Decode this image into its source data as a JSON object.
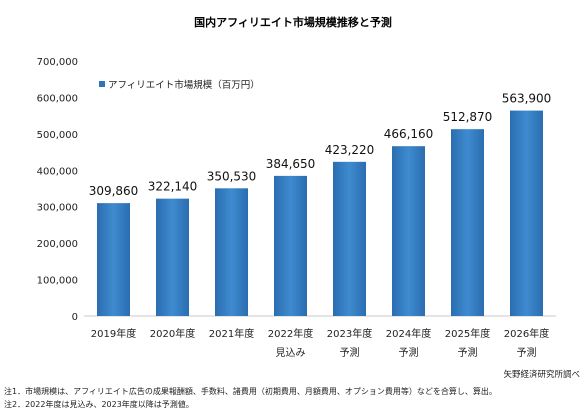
{
  "chart_data": {
    "type": "bar",
    "title": "国内アフィリエイト市場規模推移と予測",
    "categories": [
      "2019年度",
      "2020年度",
      "2021年度",
      "2022年度",
      "2023年度",
      "2024年度",
      "2025年度",
      "2026年度"
    ],
    "category_sublabels": [
      "",
      "",
      "",
      "見込み",
      "予測",
      "予測",
      "予測",
      "予測"
    ],
    "series": [
      {
        "name": "アフィリエイト市場規模（百万円）",
        "values": [
          309860,
          322140,
          350530,
          384650,
          423220,
          466160,
          512870,
          563900
        ]
      }
    ],
    "value_labels": [
      "309,860",
      "322,140",
      "350,530",
      "384,650",
      "423,220",
      "466,160",
      "512,870",
      "563,900"
    ],
    "ylim": [
      0,
      700000
    ],
    "yticks": [
      "0",
      "100,000",
      "200,000",
      "300,000",
      "400,000",
      "500,000",
      "600,000",
      "700,000"
    ],
    "xlabel": "",
    "ylabel": "",
    "legend_position": "top-left",
    "grid": false,
    "bar_color": "#2e75b6"
  },
  "source": "矢野経済研究所調べ",
  "notes": [
    "注1．市場規模は、アフィリエイト広告の成果報酬額、手数料、諸費用（初期費用、月額費用、オプション費用等）などを合算し、算出。",
    "注2．2022年度は見込み、2023年度以降は予測値。"
  ]
}
